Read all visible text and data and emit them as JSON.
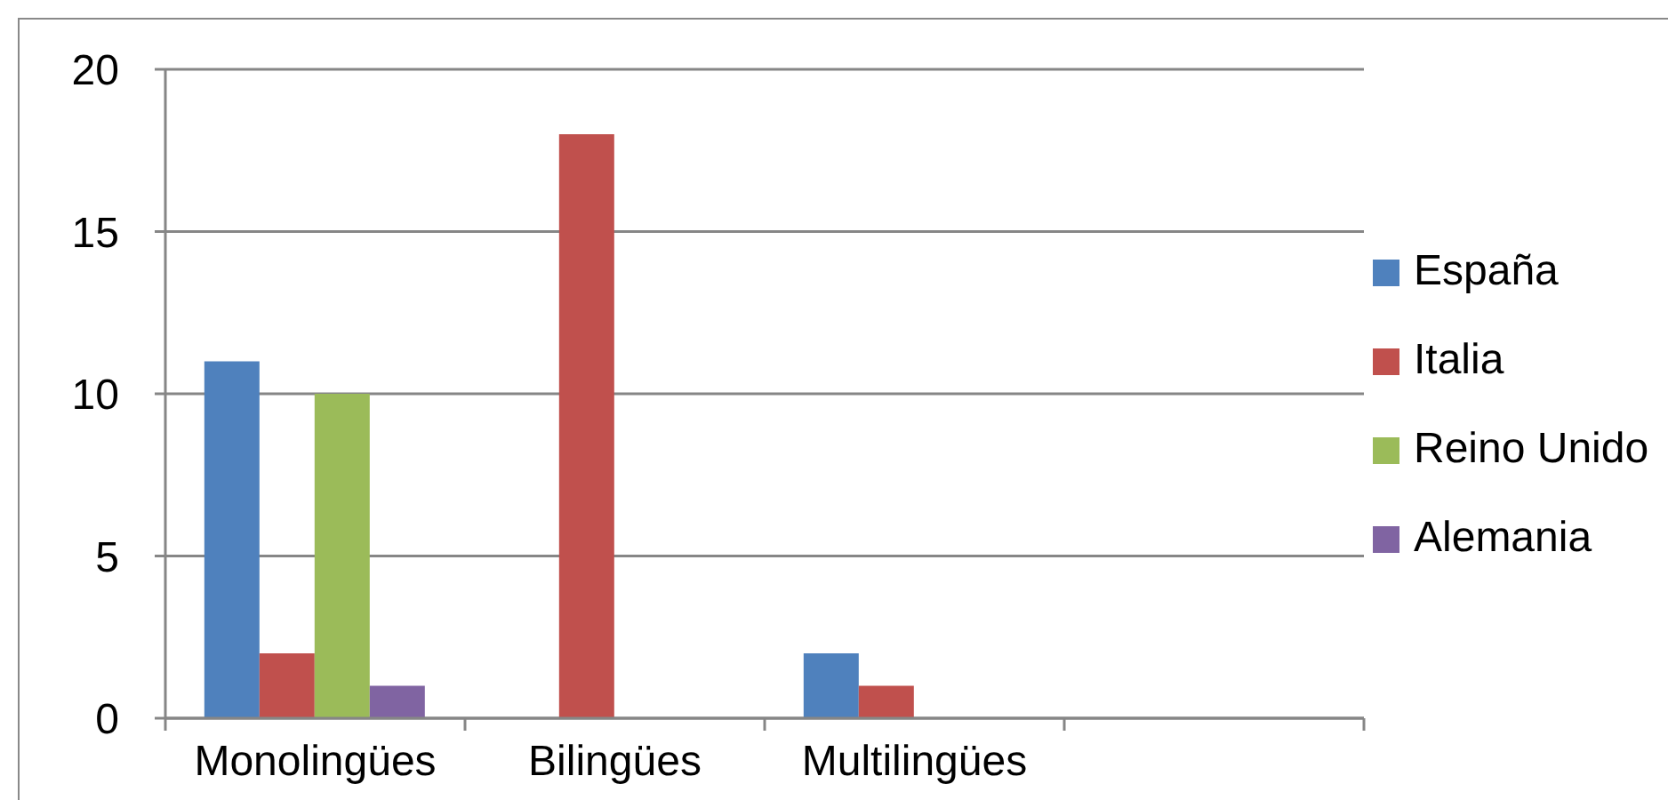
{
  "chart_data": {
    "type": "bar",
    "categories": [
      "Monolingües",
      "Bilingües",
      "Multilingües",
      null
    ],
    "series": [
      {
        "name": "España",
        "color": "#4f81bd",
        "values": [
          11,
          null,
          2,
          null
        ]
      },
      {
        "name": "Italia",
        "color": "#c0504d",
        "values": [
          2,
          18,
          1,
          null
        ]
      },
      {
        "name": "Reino Unido",
        "color": "#9bbb59",
        "values": [
          10,
          null,
          null,
          null
        ]
      },
      {
        "name": "Alemania",
        "color": "#8064a2",
        "values": [
          1,
          null,
          null,
          null
        ]
      }
    ],
    "ylim": [
      0,
      20
    ],
    "yticks": [
      0,
      5,
      10,
      15,
      20
    ],
    "grid": "y",
    "legend": "right"
  }
}
